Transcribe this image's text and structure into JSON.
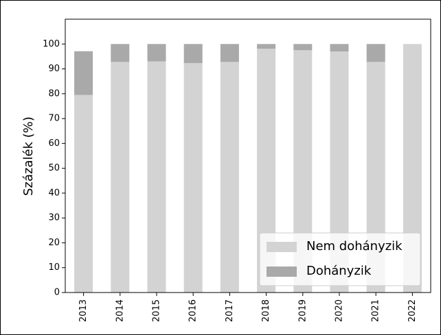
{
  "chart_data": {
    "type": "stacked_bar",
    "ylabel": "Százalék (%)",
    "categories": [
      "2013",
      "2014",
      "2015",
      "2016",
      "2017",
      "2018",
      "2019",
      "2020",
      "2021",
      "2022"
    ],
    "series": [
      {
        "name": "Nem dohányzik",
        "color": "#d3d3d3",
        "values": [
          79.5,
          92.8,
          93,
          92.3,
          92.8,
          98.1,
          97.5,
          97,
          92.8,
          100
        ]
      },
      {
        "name": "Dohányzik",
        "color": "#a9a9a9",
        "values": [
          17.6,
          7.2,
          7,
          7.7,
          7.2,
          1.9,
          2.5,
          3,
          7.2,
          0
        ]
      }
    ],
    "ylim": [
      0,
      110
    ],
    "yticks": [
      0,
      10,
      20,
      30,
      40,
      50,
      60,
      70,
      80,
      90,
      100
    ],
    "legend": "lower right"
  }
}
